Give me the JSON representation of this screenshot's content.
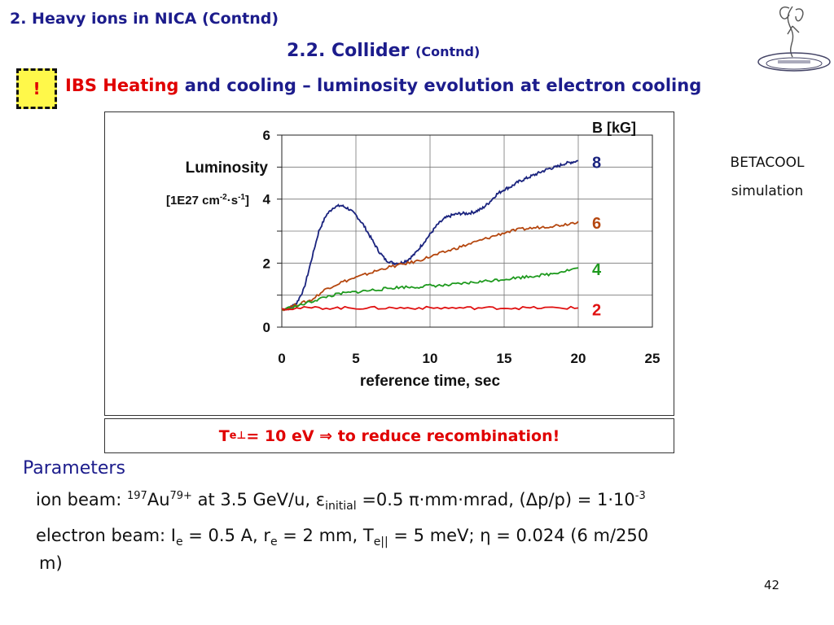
{
  "header": {
    "title": "2. Heavy ions in NICA (Contnd)",
    "subtitle_main": "2.2. Collider",
    "subtitle_small": "(Contnd)"
  },
  "warning_badge": {
    "label": "!"
  },
  "headline": {
    "red_part": "IBS Heating",
    "rest": " and cooling – luminosity evolution at electron cooling"
  },
  "side_note": {
    "line1": "BETACOOL",
    "line2": "simulation"
  },
  "note_box": {
    "prefix": "T",
    "sub": "e⊥",
    "suffix": " = 10 eV ⇒ to reduce recombination!"
  },
  "params": {
    "title": "Parameters",
    "ion_beam": {
      "label": "ion beam: ",
      "mass": "197",
      "element": "Au",
      "charge": "79+",
      "energy_text": " at 3.5 GeV/u, ",
      "eps": "ε",
      "eps_sub": "initial",
      "eps_val": " =0.5 ",
      "pi": "π",
      "units": "·mm·mrad, (",
      "delta": "Δ",
      "dp_text": "p/p) = 1·10",
      "exp": "-3"
    },
    "electron_beam": {
      "label": "electron beam: I",
      "i_sub": "e",
      "i_val": " = 0.5 A, r",
      "r_sub": "e",
      "r_val": " = 2 mm, T",
      "t_sub": "e||",
      "t_val": " = 5 meV; ",
      "eta": "η",
      "eta_val": " = 0.024 (6 m/250",
      "wrap": "m)"
    }
  },
  "page_number": "42",
  "colors": {
    "navy": "#1c1c8c",
    "red": "#e00000",
    "b8": "#1a237e",
    "b6": "#b5470f",
    "b4": "#1f9a1f",
    "b2": "#e01010",
    "warning_bg": "#fff84a"
  },
  "chart_data": {
    "type": "line",
    "legend_title": "B [kG]",
    "ylabel": "Luminosity",
    "yunit": {
      "base": "[1E27 cm",
      "e1": "-2",
      "mid": "·s",
      "e2": "-1",
      "end": "]"
    },
    "xlabel": "reference time, sec",
    "xlim": [
      0,
      25
    ],
    "ylim": [
      0,
      6
    ],
    "xticks": [
      0,
      5,
      10,
      15,
      20,
      25
    ],
    "yticks": [
      0,
      2,
      4,
      6
    ],
    "grid": true,
    "series": [
      {
        "name": "8",
        "color": "#1a237e",
        "x": [
          0,
          0.5,
          1,
          1.5,
          2,
          2.5,
          3,
          3.5,
          4,
          4.5,
          5,
          5.5,
          6,
          6.5,
          7,
          7.5,
          8,
          8.5,
          9,
          9.5,
          10,
          10.5,
          11,
          11.5,
          12,
          12.5,
          13,
          13.5,
          14,
          14.5,
          15,
          15.5,
          16,
          16.5,
          17,
          17.5,
          18,
          18.5,
          19,
          19.5,
          20
        ],
        "y": [
          0.55,
          0.6,
          0.75,
          1.2,
          2.1,
          3.0,
          3.5,
          3.75,
          3.8,
          3.7,
          3.5,
          3.2,
          2.8,
          2.4,
          2.1,
          2.0,
          2.0,
          2.1,
          2.3,
          2.6,
          2.9,
          3.2,
          3.4,
          3.5,
          3.55,
          3.55,
          3.6,
          3.7,
          3.9,
          4.15,
          4.3,
          4.4,
          4.55,
          4.65,
          4.75,
          4.85,
          4.95,
          5.0,
          5.1,
          5.15,
          5.2
        ]
      },
      {
        "name": "6",
        "color": "#b5470f",
        "x": [
          0,
          1,
          2,
          3,
          4,
          5,
          6,
          7,
          8,
          9,
          10,
          11,
          12,
          13,
          14,
          15,
          16,
          17,
          18,
          19,
          20
        ],
        "y": [
          0.55,
          0.7,
          0.85,
          1.2,
          1.4,
          1.55,
          1.7,
          1.85,
          1.95,
          2.05,
          2.2,
          2.35,
          2.5,
          2.65,
          2.8,
          2.95,
          3.05,
          3.1,
          3.15,
          3.2,
          3.3
        ]
      },
      {
        "name": "4",
        "color": "#1f9a1f",
        "x": [
          0,
          1,
          2,
          3,
          4,
          5,
          6,
          7,
          8,
          9,
          10,
          11,
          12,
          13,
          14,
          15,
          16,
          17,
          18,
          19,
          20
        ],
        "y": [
          0.55,
          0.65,
          0.8,
          0.95,
          1.05,
          1.1,
          1.15,
          1.2,
          1.25,
          1.25,
          1.3,
          1.3,
          1.35,
          1.4,
          1.45,
          1.5,
          1.55,
          1.6,
          1.65,
          1.75,
          1.85
        ]
      },
      {
        "name": "2",
        "color": "#e01010",
        "x": [
          0,
          2,
          4,
          6,
          8,
          10,
          12,
          14,
          16,
          18,
          20
        ],
        "y": [
          0.58,
          0.6,
          0.6,
          0.6,
          0.6,
          0.6,
          0.6,
          0.6,
          0.6,
          0.6,
          0.6
        ]
      }
    ]
  }
}
